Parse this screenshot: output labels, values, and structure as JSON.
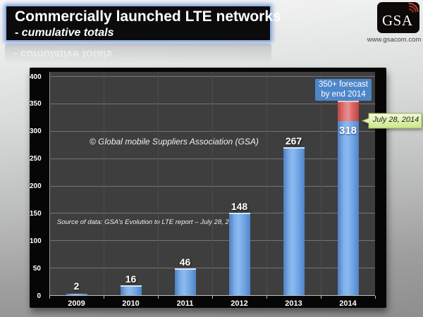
{
  "title": {
    "line1": "Commercially launched LTE networks",
    "line2": "- cumulative totals"
  },
  "logo": {
    "text": "GSA",
    "url": "www.gsacom.com"
  },
  "annotations": {
    "copyright": "© Global mobile Suppliers Association (GSA)",
    "source": "Source of data: GSA’s Evolution to LTE report – July 28, 2014",
    "forecast_line1": "350+ forecast",
    "forecast_line2": "by end 2014",
    "date_callout": "July 28, 2014"
  },
  "chart_data": {
    "type": "bar",
    "title": "Commercially launched LTE networks - cumulative totals",
    "categories": [
      "2009",
      "2010",
      "2011",
      "2012",
      "2013",
      "2014"
    ],
    "values": [
      2,
      16,
      46,
      148,
      267,
      318
    ],
    "forecast": {
      "category": "2014",
      "value": 350,
      "label": "350+ forecast by end 2014",
      "red_segment_top": 353
    },
    "xlabel": "",
    "ylabel": "",
    "ylim": [
      0,
      400
    ],
    "ytick_interval": 50,
    "grid": true,
    "legend": "none",
    "plot_bg": "#3e3e3e",
    "bar_color": "#5b93d8",
    "forecast_color": "#d45454"
  },
  "colors": {
    "accent_blue": "#4d86c9",
    "forecast_red": "#d45454",
    "callout_green": "#cde588",
    "title_glow": "#93b2e3"
  }
}
